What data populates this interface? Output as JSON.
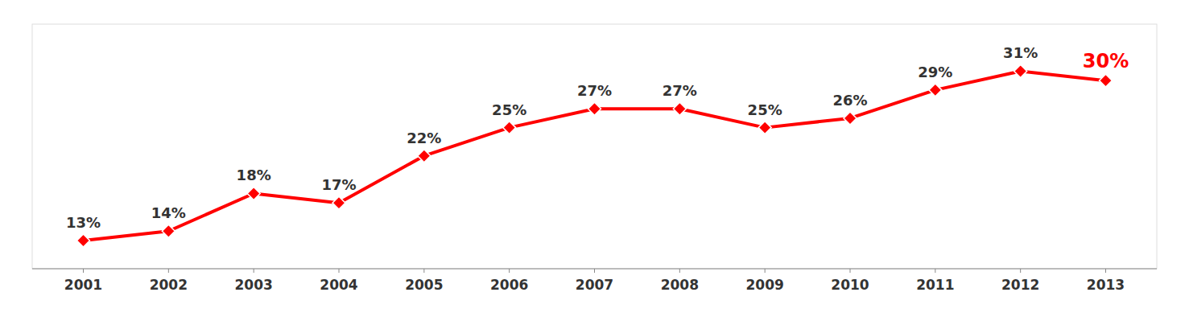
{
  "chart_data": {
    "type": "line",
    "x": [
      2001,
      2002,
      2003,
      2004,
      2005,
      2006,
      2007,
      2008,
      2009,
      2010,
      2011,
      2012,
      2013
    ],
    "values": [
      13,
      14,
      18,
      17,
      22,
      25,
      27,
      27,
      25,
      26,
      29,
      31,
      30
    ],
    "value_labels": [
      "13%",
      "14%",
      "18%",
      "17%",
      "22%",
      "25%",
      "27%",
      "27%",
      "25%",
      "26%",
      "29%",
      "31%",
      "30%"
    ],
    "color": "#ff0000",
    "marker": "diamond",
    "xlim": [
      2000.4,
      2013.6
    ],
    "ylim": [
      10,
      36
    ],
    "xticks": [
      2001,
      2002,
      2003,
      2004,
      2005,
      2006,
      2007,
      2008,
      2009,
      2010,
      2011,
      2012,
      2013
    ],
    "data_labels": true,
    "tick_labels": "x",
    "grid": false
  }
}
